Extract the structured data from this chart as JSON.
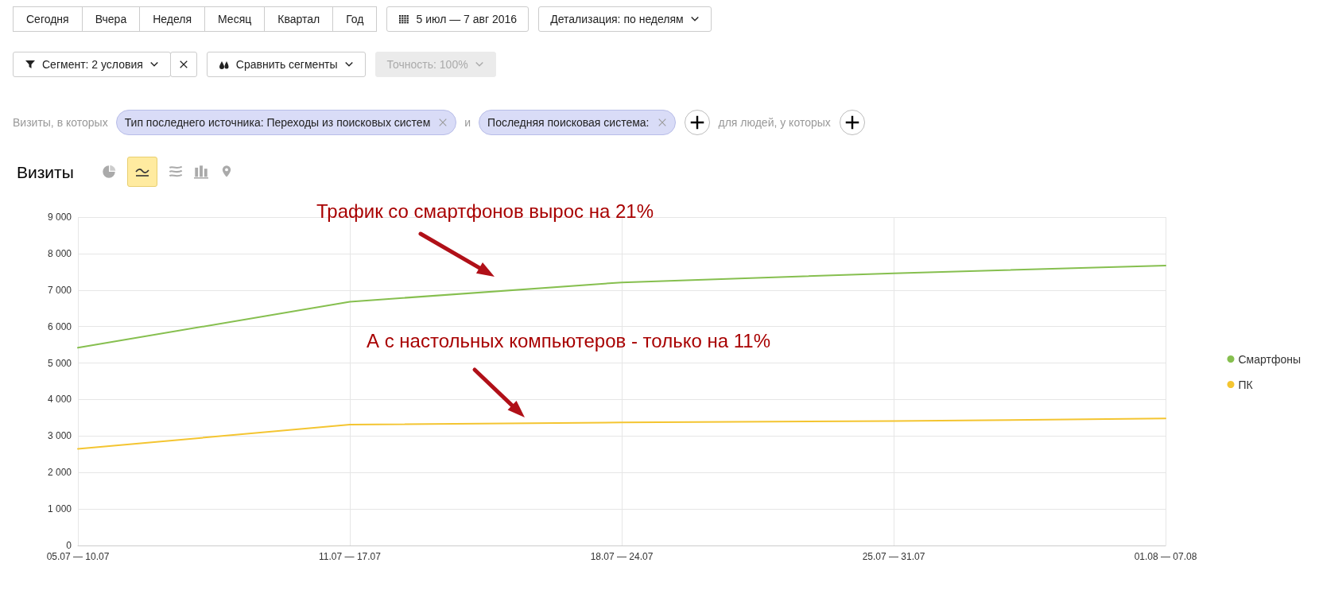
{
  "chart_data": {
    "type": "line",
    "title": "Визиты",
    "categories": [
      "05.07 — 10.07",
      "11.07 — 17.07",
      "18.07 — 24.07",
      "25.07 — 31.07",
      "01.08 — 07.08"
    ],
    "series": [
      {
        "name": "Смартфоны",
        "color": "#86bf4f",
        "values": [
          5420,
          6680,
          7210,
          7460,
          7670
        ]
      },
      {
        "name": "ПК",
        "color": "#f4c531",
        "values": [
          2650,
          3310,
          3370,
          3410,
          3480
        ]
      }
    ],
    "ylim": [
      0,
      9000
    ],
    "yticks": [
      0,
      {
        "value": 1000,
        "label": "1 000"
      },
      {
        "value": 2000,
        "label": "2 000"
      },
      {
        "value": 3000,
        "label": "3 000"
      },
      {
        "value": 4000,
        "label": "4 000"
      },
      {
        "value": 5000,
        "label": "5 000"
      },
      {
        "value": 6000,
        "label": "6 000"
      },
      {
        "value": 7000,
        "label": "7 000"
      },
      {
        "value": 8000,
        "label": "8 000"
      },
      {
        "value": 9000,
        "label": "9 000"
      }
    ],
    "grid": true,
    "legend": "right",
    "marker": "none",
    "line_style": "solid",
    "annotations": [
      "Сегодня",
      "Вчера",
      "Неделя",
      "Месяц",
      "Квартал",
      "Год",
      "5 июл — 7 авг 2016",
      "Детализация: по неделям",
      "Сегмент: 2 условия",
      "Сравнить сегменты",
      "Точность: 100%",
      "Визиты, в которых",
      "Тип последнего источника: Переходы из поисковых систем",
      "и",
      "Последняя поисковая система:",
      "для людей, у которых",
      "Трафик со смартфонов вырос на 21%",
      "А с настольных компьютеров - только на 11%"
    ]
  }
}
